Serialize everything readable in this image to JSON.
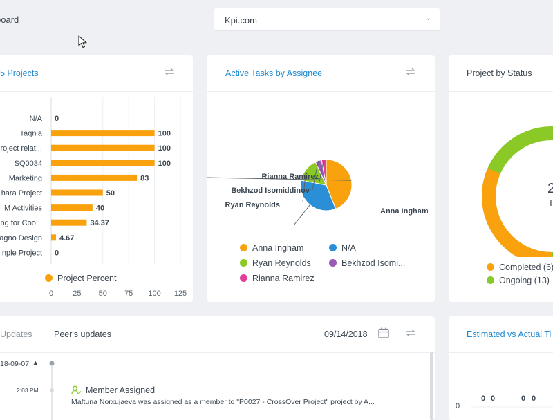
{
  "breadcrumb": "board",
  "project_select": {
    "value": "Kpi.com"
  },
  "colors": {
    "orange": "#f9a20d",
    "blue": "#2a8fd6",
    "green": "#8ac926",
    "purple": "#9b59b6",
    "pink": "#e0409a",
    "title_blue": "#1e88d0"
  },
  "card1": {
    "title": "5 Projects",
    "legend": "Project Percent",
    "chart_data": {
      "type": "bar",
      "orientation": "horizontal",
      "categories": [
        "N/A",
        "Taqnia",
        "roject relat...",
        "SQ0034",
        "Marketing",
        "hara Project",
        "M Activities",
        "ng for Coo...",
        "agno Design",
        "nple Project"
      ],
      "values": [
        0,
        100,
        100,
        100,
        83,
        50,
        40,
        34.37,
        4.67,
        0
      ],
      "value_labels": [
        "0",
        "100",
        "100",
        "100",
        "83",
        "50",
        "40",
        "34.37",
        "4.67",
        "0"
      ],
      "x_ticks": [
        "0",
        "25",
        "50",
        "75",
        "100",
        "125"
      ],
      "xlim": [
        0,
        125
      ],
      "series_name": "Project Percent",
      "color": "#f9a20d"
    }
  },
  "card2": {
    "title": "Active Tasks by Assignee",
    "chart_data": {
      "type": "pie",
      "labels": [
        "Anna Ingham",
        "N/A",
        "Ryan Reynolds",
        "Bekhzod Isomiddinov",
        "Rianna Ramirez"
      ],
      "values": [
        44,
        34,
        15,
        4,
        3
      ],
      "colors": [
        "#f9a20d",
        "#2a8fd6",
        "#8ac926",
        "#9b59b6",
        "#e0409a"
      ]
    },
    "legend": [
      "Anna Ingham",
      "N/A",
      "Ryan Reynolds",
      "Bekhzod Isomi...",
      "Rianna Ramirez"
    ]
  },
  "card3": {
    "title": "Project by Status",
    "center_value": "2",
    "center_label": "T",
    "chart_data": {
      "type": "pie",
      "labels": [
        "Completed",
        "Ongoing"
      ],
      "values": [
        6,
        13
      ],
      "colors": [
        "#f9a20d",
        "#8ac926"
      ]
    },
    "legend": [
      "Completed (6)",
      "Ongoing (13)"
    ]
  },
  "card4": {
    "tabs": [
      "Updates",
      "Peer's updates"
    ],
    "date": "09/14/2018",
    "feed": {
      "date": "18-09-07",
      "time": "2:03 PM",
      "title": "Member Assigned",
      "text": "Maftuna Norxujaeva was assigned as a member to \"P0027 - CrossOver Project\" project by A..."
    }
  },
  "card5": {
    "title": "Estimated vs Actual Ti",
    "y_zero": "0",
    "labels": [
      "0",
      "0",
      "0",
      "0"
    ]
  }
}
